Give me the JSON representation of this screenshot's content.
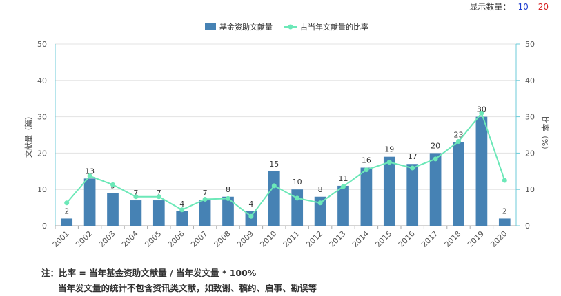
{
  "display_count": {
    "label": "显示数量：",
    "options": [
      "10",
      "20"
    ],
    "colors": [
      "#1f3ecf",
      "#d62020"
    ]
  },
  "chart_data": {
    "type": "bar+line",
    "categories": [
      "2001",
      "2002",
      "2003",
      "2004",
      "2005",
      "2006",
      "2007",
      "2008",
      "2009",
      "2010",
      "2011",
      "2012",
      "2013",
      "2014",
      "2015",
      "2016",
      "2017",
      "2018",
      "2019",
      "2020"
    ],
    "series": [
      {
        "name": "基金资助文献量",
        "type": "bar",
        "axis": "left",
        "color": "#4682b4",
        "values": [
          2,
          13,
          9,
          7,
          7,
          4,
          7,
          8,
          4,
          15,
          10,
          8,
          11,
          16,
          19,
          17,
          20,
          23,
          30,
          2
        ],
        "labels": [
          "2",
          "13",
          "9",
          "7",
          "7",
          "4",
          "7",
          "8",
          "4",
          "15",
          "10",
          "8",
          "11",
          "16",
          "19",
          "17",
          "20",
          "23",
          "30",
          "2"
        ]
      },
      {
        "name": "占当年文献量的比率",
        "type": "line",
        "axis": "right",
        "color": "#6ce8b8",
        "values": [
          6.3,
          13.7,
          11.3,
          8.0,
          8.0,
          4.4,
          7.3,
          7.5,
          2.6,
          11.0,
          7.6,
          6.3,
          10.8,
          15.4,
          17.5,
          15.9,
          18.4,
          23.2,
          31.0,
          12.5
        ]
      }
    ],
    "ylabel_left": "文献量（篇）",
    "ylabel_right": "比率（%）",
    "ylim_left": [
      0,
      50
    ],
    "ylim_right": [
      0,
      50
    ],
    "yticks": [
      "0",
      "10",
      "20",
      "30",
      "40",
      "50"
    ],
    "grid": true,
    "legend_position": "top-center"
  },
  "note": {
    "line1": "注：比率 = 当年基金资助文献量 / 当年发文量 * 100%",
    "line2": "当年发文量的统计不包含资讯类文献，如致谢、稿约、启事、勘误等"
  }
}
